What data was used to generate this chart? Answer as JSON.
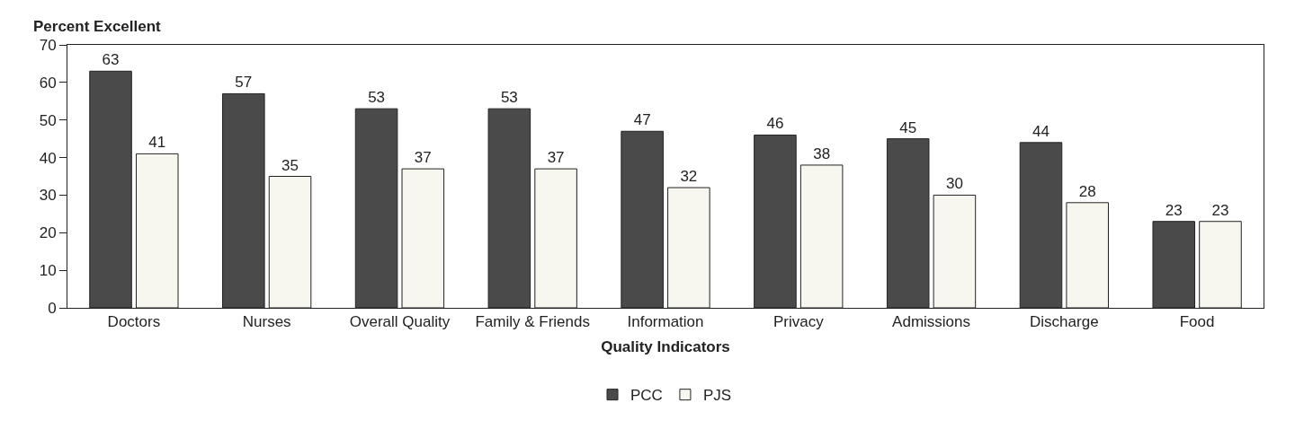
{
  "chart_data": {
    "type": "bar",
    "ylabel": "Percent Excellent",
    "xlabel": "Quality Indicators",
    "categories": [
      "Doctors",
      "Nurses",
      "Overall Quality",
      "Family & Friends",
      "Information",
      "Privacy",
      "Admissions",
      "Discharge",
      "Food"
    ],
    "series": [
      {
        "name": "PCC",
        "color": "#4a4a4a",
        "values": [
          63,
          57,
          53,
          53,
          47,
          46,
          45,
          44,
          23
        ]
      },
      {
        "name": "PJS",
        "color": "#f7f7f0",
        "values": [
          41,
          35,
          37,
          37,
          32,
          38,
          30,
          28,
          23
        ]
      }
    ],
    "ylim": [
      0,
      70
    ],
    "yticks": [
      0,
      10,
      20,
      30,
      40,
      50,
      60,
      70
    ],
    "grid": false,
    "legend": "bottom",
    "data_labels": true
  }
}
